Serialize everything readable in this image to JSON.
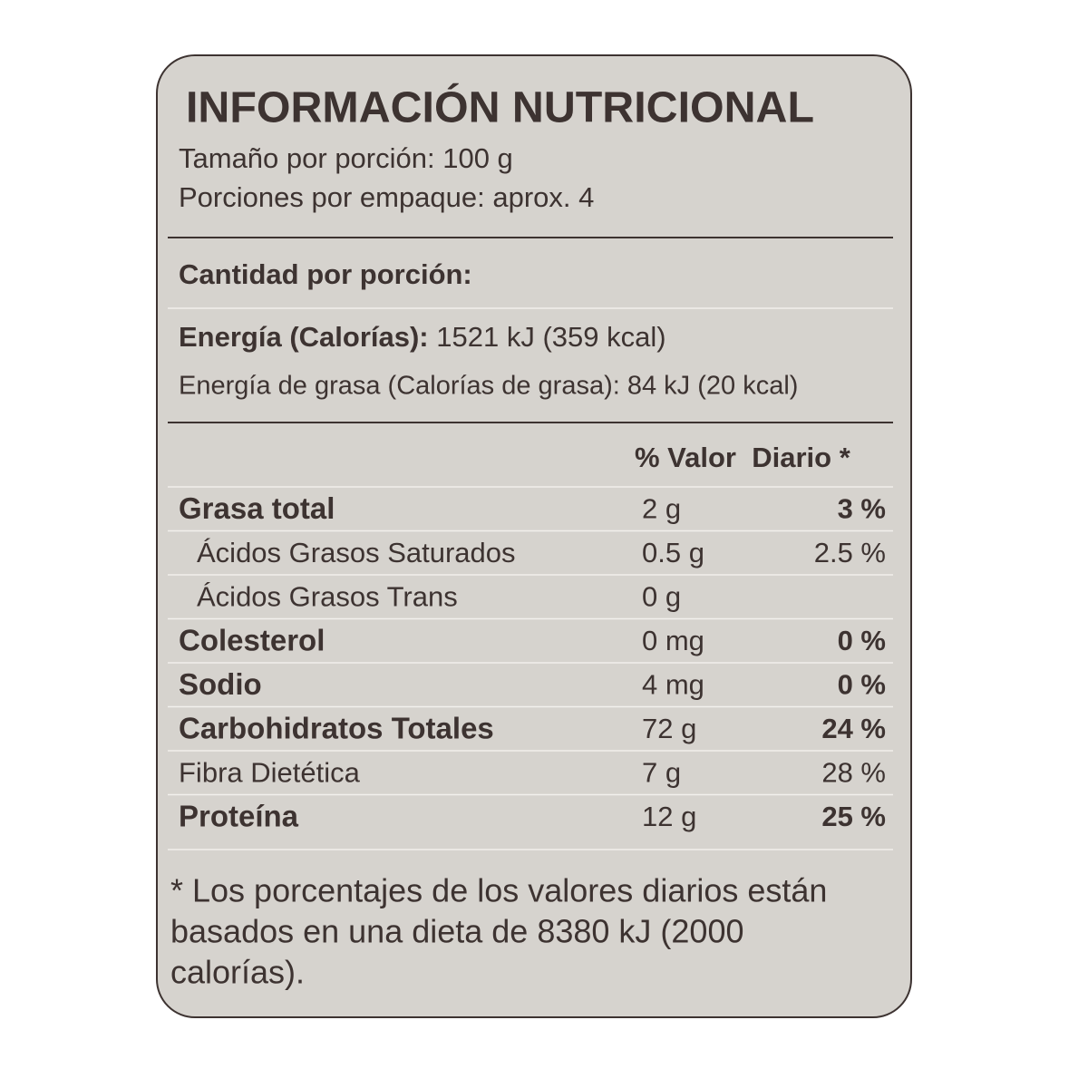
{
  "header": {
    "title": "INFORMACIÓN NUTRICIONAL",
    "serving_size": "Tamaño por porción: 100 g",
    "servings": "Porciones por empaque: aprox. 4"
  },
  "amount_heading": "Cantidad por porción:",
  "energy": {
    "label": "Energía (Calorías):",
    "value": "1521 kJ (359 kcal)"
  },
  "energy_fat": "Energía de grasa (Calorías de grasa): 84 kJ (20 kcal)",
  "table": {
    "header": "% Valor  Diario *",
    "rows": [
      {
        "name": "Grasa total",
        "amount": "2 g",
        "dv": "3 %",
        "bold": true,
        "indent": false
      },
      {
        "name": "Ácidos Grasos Saturados",
        "amount": "0.5 g",
        "dv": "2.5 %",
        "bold": false,
        "indent": true
      },
      {
        "name": "Ácidos Grasos Trans",
        "amount": "0 g",
        "dv": null,
        "bold": false,
        "indent": true
      },
      {
        "name": "Colesterol",
        "amount": "0 mg",
        "dv": "0 %",
        "bold": true,
        "indent": false
      },
      {
        "name": "Sodio",
        "amount": "4 mg",
        "dv": "0 %",
        "bold": true,
        "indent": false
      },
      {
        "name": "Carbohidratos Totales",
        "amount": "72 g",
        "dv": "24 %",
        "bold": true,
        "indent": false
      },
      {
        "name": "Fibra Dietética",
        "amount": "7 g",
        "dv": "28 %",
        "bold": false,
        "indent": false
      },
      {
        "name": "Proteína",
        "amount": "12 g",
        "dv": "25 %",
        "bold": true,
        "indent": false
      }
    ]
  },
  "footnote": [
    "* Los porcentajes de los valores diarios están",
    "basados en una dieta de 8380 kJ (2000",
    "calorías)."
  ]
}
